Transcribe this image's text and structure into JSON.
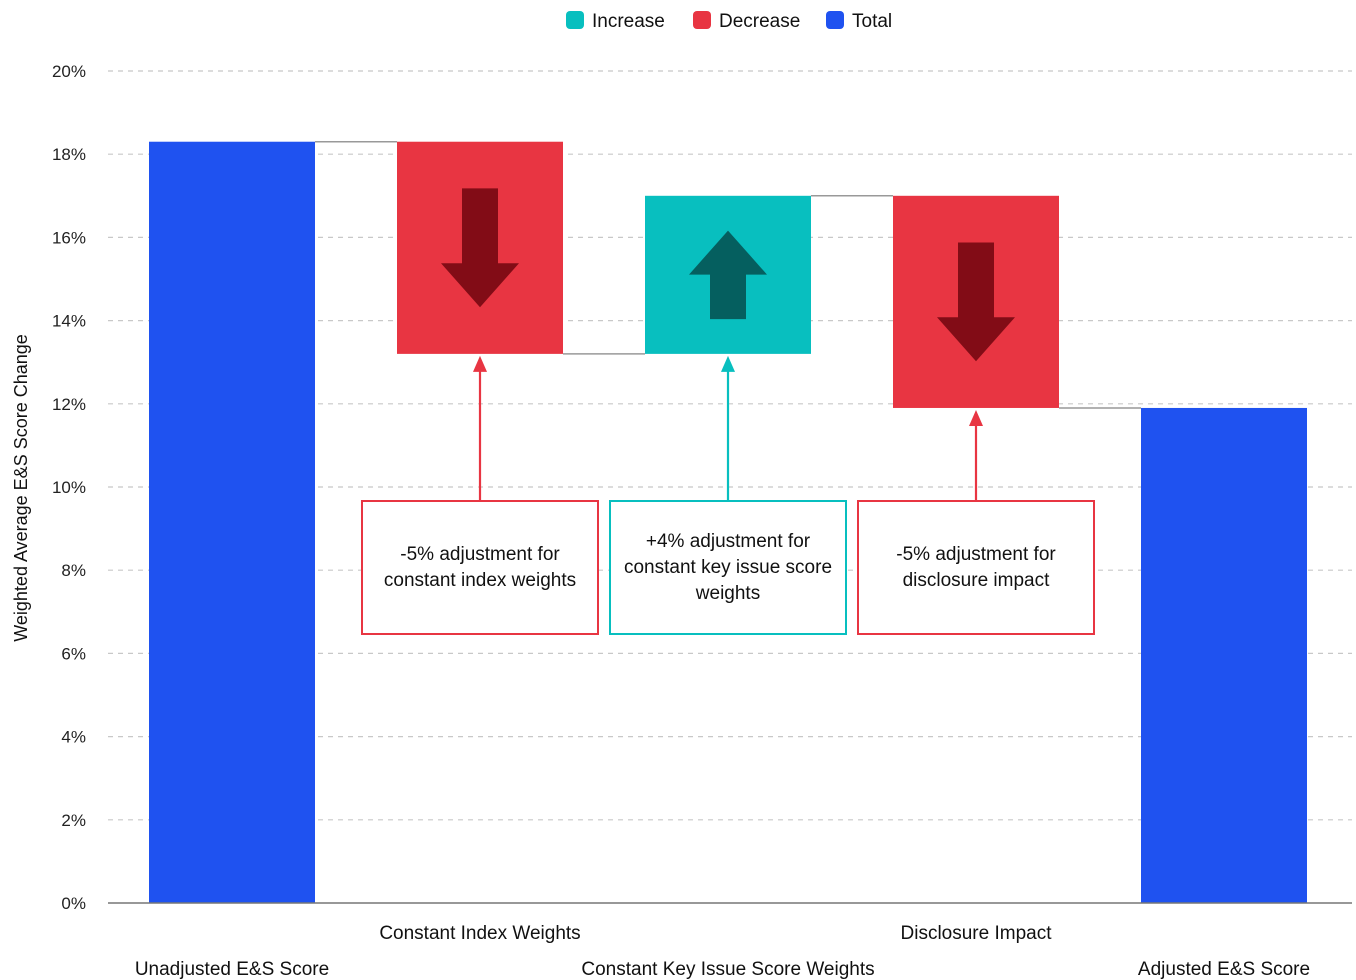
{
  "legend": [
    {
      "label": "Increase",
      "color": "#08bfbf"
    },
    {
      "label": "Decrease",
      "color": "#e83542"
    },
    {
      "label": "Total",
      "color": "#1f52f0"
    }
  ],
  "annotations": [
    {
      "text": "-5% adjustment for constant index weights",
      "color": "#e83542",
      "category_index": 1
    },
    {
      "text": "+4% adjustment for constant key issue score weights",
      "color": "#08bfbf",
      "category_index": 2
    },
    {
      "text": "-5% adjustment for disclosure impact",
      "color": "#e83542",
      "category_index": 3
    }
  ],
  "chart_data": {
    "type": "bar",
    "subtype": "waterfall",
    "categories": [
      "Unadjusted E&S Score",
      "Constant Index Weights",
      "Constant Key Issue Score Weights",
      "Disclosure Impact",
      "Adjusted E&S Score"
    ],
    "bars": [
      {
        "kind": "total",
        "start": 0,
        "end": 18.3
      },
      {
        "kind": "decrease",
        "start": 18.3,
        "end": 13.2
      },
      {
        "kind": "increase",
        "start": 13.2,
        "end": 17.0
      },
      {
        "kind": "decrease",
        "start": 17.0,
        "end": 11.9
      },
      {
        "kind": "total",
        "start": 0,
        "end": 11.9
      }
    ],
    "ylabel": "Weighted Average E&S Score Change",
    "xlabel": "",
    "ylim": [
      0,
      20
    ],
    "yticks": [
      0,
      2,
      4,
      6,
      8,
      10,
      12,
      14,
      16,
      18,
      20
    ],
    "ytick_format": "percent",
    "grid": true,
    "legend_position": "top-center",
    "colors": {
      "increase": "#08bfbf",
      "decrease": "#e83542",
      "total": "#1f52f0",
      "increase_arrow": "#055f5f",
      "decrease_arrow": "#820c16",
      "connector": "#999999",
      "grid": "#c8c8c8",
      "axis": "#777777"
    }
  }
}
